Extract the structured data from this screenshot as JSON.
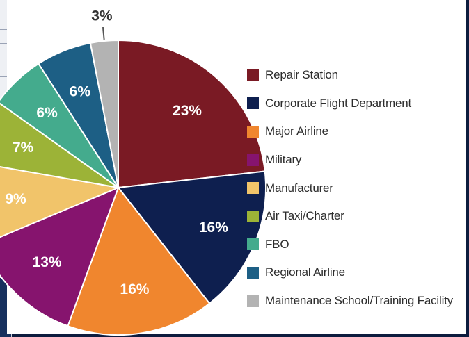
{
  "chart_data": {
    "type": "pie",
    "title": "",
    "categories": [
      "Repair Station",
      "Corporate Flight Department",
      "Major Airline",
      "Military",
      "Manufacturer",
      "Air Taxi/Charter",
      "FBO",
      "Regional Airline",
      "Maintenance School/Training Facility"
    ],
    "values": [
      23,
      16,
      16,
      13,
      9,
      7,
      6,
      6,
      3
    ],
    "value_labels": [
      "23%",
      "16%",
      "16%",
      "13%",
      "9%",
      "7%",
      "6%",
      "6%",
      "3%"
    ],
    "colors": [
      "#7a1a24",
      "#0e1f4f",
      "#f0862e",
      "#86146e",
      "#f1c46a",
      "#9cb337",
      "#44ab8d",
      "#1d5f85",
      "#b3b3b3"
    ],
    "legend_position": "right",
    "start_angle": "top, clockwise"
  }
}
